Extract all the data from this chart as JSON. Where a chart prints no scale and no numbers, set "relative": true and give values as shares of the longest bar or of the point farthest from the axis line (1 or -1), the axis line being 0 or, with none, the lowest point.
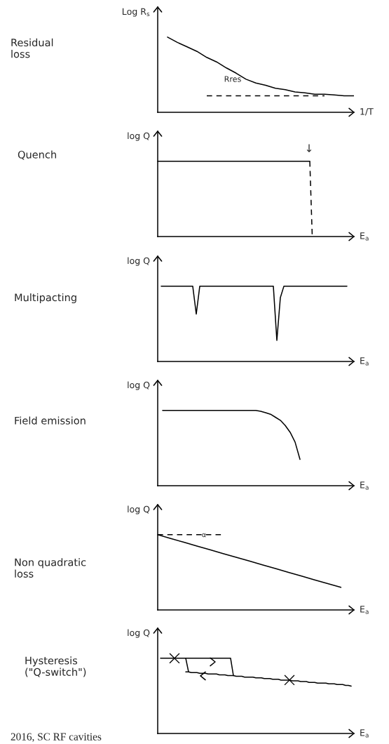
{
  "chart_data": [
    {
      "type": "line",
      "relative": true,
      "ylabel": "Log R$_{s}$",
      "xlabel": "1/T",
      "annotations": [
        "Residual\nloss",
        "Rres"
      ],
      "categories": [
        null,
        null,
        null,
        null,
        null,
        null,
        null,
        null,
        null,
        null,
        null,
        null,
        null,
        null,
        null,
        null,
        null,
        null,
        null,
        null,
        null
      ],
      "series": [
        {
          "type": "line",
          "color": "#000000",
          "line_style": "solid",
          "values": [
            null,
            1.0,
            0.93,
            0.87,
            0.81,
            0.73,
            0.67,
            0.59,
            0.52,
            0.44,
            0.39,
            0.36,
            0.32,
            0.3,
            0.27,
            0.26,
            0.24,
            0.24,
            0.23,
            0.22,
            0.22
          ]
        },
        {
          "type": "line",
          "color": "#000000",
          "line_style": "dashed",
          "values": [
            null,
            null,
            null,
            null,
            null,
            0.22,
            0.22,
            0.22,
            0.22,
            0.22,
            0.22,
            0.22,
            0.22,
            0.22,
            0.22,
            0.22,
            0.22,
            0.22,
            null,
            null,
            null
          ]
        }
      ]
    },
    {
      "type": "line",
      "relative": true,
      "ylabel": "log Q",
      "xlabel": "E$_{a}$",
      "annotations": [
        "Quench",
        "↓"
      ],
      "categories": [
        null,
        null,
        null,
        null,
        null,
        null,
        null,
        null,
        null,
        null,
        null,
        null,
        null,
        null,
        null,
        null,
        null,
        null,
        null,
        null,
        null,
        null,
        null,
        null,
        null,
        null,
        null,
        null,
        null,
        null,
        null,
        null,
        null,
        null,
        null,
        null,
        null,
        null,
        null,
        null,
        null,
        null,
        null,
        null,
        null,
        null,
        null,
        null,
        null,
        null,
        null,
        null,
        null,
        null,
        null,
        null,
        null,
        null,
        null,
        null,
        null,
        null,
        null,
        null,
        null,
        null,
        null,
        null,
        null,
        null,
        null,
        null,
        null,
        null,
        null,
        null,
        null,
        null,
        null,
        null,
        null
      ],
      "series": [
        {
          "type": "line",
          "color": "#000000",
          "line_style": "solid",
          "values": [
            1,
            1,
            1,
            1,
            1,
            1,
            1,
            1,
            1,
            1,
            1,
            1,
            1,
            1,
            1,
            1,
            1,
            1,
            1,
            1,
            1,
            1,
            1,
            1,
            1,
            1,
            1,
            1,
            1,
            1,
            1,
            1,
            1,
            1,
            1,
            1,
            1,
            1,
            1,
            1,
            1,
            1,
            1,
            1,
            1,
            1,
            1,
            1,
            1,
            1,
            1,
            1,
            1,
            1,
            1,
            1,
            1,
            1,
            1,
            1,
            1,
            1,
            1,
            null,
            null,
            null,
            null,
            null,
            null,
            null,
            null,
            null,
            null,
            null,
            null,
            null,
            null,
            null,
            null,
            null,
            null
          ]
        },
        {
          "type": "line",
          "color": "#000000",
          "line_style": "dashed",
          "values": [
            null,
            null,
            null,
            null,
            null,
            null,
            null,
            null,
            null,
            null,
            null,
            null,
            null,
            null,
            null,
            null,
            null,
            null,
            null,
            null,
            null,
            null,
            null,
            null,
            null,
            null,
            null,
            null,
            null,
            null,
            null,
            null,
            null,
            null,
            null,
            null,
            null,
            null,
            null,
            null,
            null,
            null,
            null,
            null,
            null,
            null,
            null,
            null,
            null,
            null,
            null,
            null,
            null,
            null,
            null,
            null,
            null,
            null,
            null,
            null,
            null,
            null,
            1,
            0,
            null,
            null,
            null,
            null,
            null,
            null,
            null,
            null,
            null,
            null,
            null,
            null,
            null,
            null,
            null,
            null,
            null
          ]
        }
      ]
    },
    {
      "type": "line",
      "relative": true,
      "ylabel": "log Q",
      "xlabel": "E$_{a}$",
      "annotations": [
        "Multipacting"
      ],
      "categories": [
        null,
        null,
        null,
        null,
        null,
        null,
        null,
        null,
        null,
        null,
        null,
        null,
        null,
        null,
        null,
        null,
        null,
        null,
        null,
        null,
        null,
        null,
        null,
        null,
        null,
        null,
        null,
        null,
        null,
        null,
        null,
        null,
        null,
        null,
        null,
        null,
        null,
        null,
        null,
        null,
        null,
        null,
        null,
        null,
        null,
        null,
        null,
        null,
        null,
        null,
        null,
        null,
        null,
        null,
        null,
        null,
        null
      ],
      "series": [
        {
          "type": "line",
          "color": "#000000",
          "line_style": "solid",
          "values": [
            null,
            1,
            1,
            1,
            1,
            1,
            1,
            1,
            1,
            1,
            1,
            0.63,
            1,
            1,
            1,
            1,
            1,
            1,
            1,
            1,
            1,
            1,
            1,
            1,
            1,
            1,
            1,
            1,
            1,
            1,
            1,
            1,
            1,
            1,
            0.28,
            0.85,
            1,
            1,
            1,
            1,
            1,
            1,
            1,
            1,
            1,
            1,
            1,
            1,
            1,
            1,
            1,
            1,
            1,
            1,
            1,
            null,
            null
          ]
        }
      ]
    },
    {
      "type": "line",
      "relative": true,
      "ylabel": "log Q",
      "xlabel": "E$_{a}$",
      "annotations": [
        "Field emission"
      ],
      "categories": [
        null,
        null,
        null,
        null,
        null,
        null,
        null,
        null,
        null,
        null,
        null,
        null,
        null,
        null,
        null,
        null,
        null,
        null,
        null,
        null,
        null,
        null,
        null,
        null,
        null,
        null,
        null,
        null,
        null,
        null,
        null,
        null,
        null,
        null,
        null,
        null,
        null,
        null,
        null,
        null,
        null
      ],
      "series": [
        {
          "type": "line",
          "color": "#000000",
          "line_style": "solid",
          "values": [
            null,
            1,
            1,
            1,
            1,
            1,
            1,
            1,
            1,
            1,
            1,
            1,
            1,
            1,
            1,
            1,
            1,
            1,
            1,
            1,
            1,
            0.99,
            0.97,
            0.95,
            0.91,
            0.87,
            0.8,
            0.71,
            0.58,
            0.35,
            null,
            null,
            null,
            null,
            null,
            null,
            null,
            null,
            null,
            null,
            null
          ]
        }
      ]
    },
    {
      "type": "line",
      "relative": true,
      "ylabel": "log Q",
      "xlabel": "E$_{a}$",
      "annotations": [
        "Non quadratic\nloss",
        "α"
      ],
      "categories": [
        null,
        null,
        null,
        null,
        null,
        null,
        null,
        null,
        null,
        null,
        null,
        null,
        null,
        null,
        null,
        null
      ],
      "series": [
        {
          "type": "line",
          "color": "#000000",
          "line_style": "solid",
          "values": [
            1.0,
            0.95,
            0.9,
            0.85,
            0.8,
            0.75,
            0.7,
            0.65,
            0.6,
            0.55,
            0.5,
            0.45,
            0.4,
            0.35,
            0.3,
            null
          ]
        },
        {
          "type": "line",
          "color": "#000000",
          "line_style": "dashed",
          "values": [
            1,
            1,
            1,
            1,
            1,
            1,
            null,
            null,
            null,
            null,
            null,
            null,
            null,
            null,
            null,
            null
          ]
        }
      ]
    },
    {
      "type": "line",
      "relative": true,
      "ylabel": "log Q",
      "xlabel": "E$_{a}$",
      "annotations": [
        "Hysteresis\n(\"Q-switch\")",
        "2016, SC RF cavities"
      ],
      "categories": [
        null,
        null,
        null,
        null,
        null,
        null,
        null,
        null,
        null,
        null,
        null,
        null,
        null,
        null,
        null,
        null,
        null,
        null,
        null,
        null,
        null,
        null,
        null,
        null,
        null,
        null,
        null,
        null,
        null,
        null,
        null,
        null,
        null,
        null,
        null,
        null,
        null,
        null,
        null,
        null,
        null,
        null,
        null,
        null,
        null,
        null,
        null,
        null,
        null,
        null,
        null,
        null,
        null,
        null,
        null,
        null,
        null,
        null,
        null,
        null,
        null,
        null,
        null,
        null,
        null,
        null,
        null,
        null,
        null,
        null,
        null
      ],
      "series": [
        {
          "type": "line",
          "color": "#000000",
          "line_style": "solid",
          "values": [
            null,
            1,
            1,
            1,
            1,
            1,
            1,
            1,
            1,
            1,
            1,
            1,
            1,
            1,
            1,
            1,
            1,
            1,
            1,
            1,
            1,
            1,
            1,
            1,
            1,
            1,
            1,
            0.77,
            null,
            null,
            null,
            null,
            null,
            null,
            null,
            null,
            null,
            null,
            null,
            null,
            null,
            null,
            null,
            null,
            null,
            null,
            null,
            null,
            null,
            null,
            null,
            null,
            null,
            null,
            null,
            null,
            null,
            null,
            null,
            null,
            null,
            null,
            null,
            null,
            null,
            null,
            null,
            null,
            null,
            null,
            null
          ]
        },
        {
          "type": "line",
          "color": "#000000",
          "line_style": "solid",
          "values": [
            null,
            null,
            null,
            null,
            null,
            null,
            null,
            null,
            null,
            null,
            1,
            0.82,
            null,
            null,
            null,
            null,
            null,
            null,
            null,
            null,
            null,
            null,
            null,
            null,
            null,
            null,
            null,
            null,
            null,
            null,
            null,
            null,
            null,
            null,
            null,
            null,
            null,
            null,
            null,
            null,
            null,
            null,
            null,
            null,
            null,
            null,
            null,
            null,
            null,
            null,
            null,
            null,
            null,
            null,
            null,
            null,
            null,
            null,
            null,
            null,
            null,
            null,
            null,
            null,
            null,
            null,
            null,
            null,
            null,
            null,
            null
          ]
        },
        {
          "type": "line",
          "color": "#000000",
          "line_style": "solid",
          "values": [
            null,
            null,
            null,
            null,
            null,
            null,
            null,
            null,
            null,
            null,
            0.82,
            0.82,
            0.81,
            0.81,
            0.81,
            0.8,
            0.8,
            0.8,
            0.79,
            0.79,
            0.79,
            0.79,
            0.78,
            0.78,
            0.78,
            0.77,
            0.77,
            0.77,
            0.76,
            0.76,
            0.76,
            0.75,
            0.75,
            0.75,
            0.75,
            0.74,
            0.74,
            0.74,
            0.73,
            0.73,
            0.73,
            0.72,
            0.72,
            0.72,
            0.71,
            0.71,
            0.71,
            0.71,
            0.7,
            0.7,
            0.7,
            0.69,
            0.69,
            0.69,
            0.68,
            0.68,
            0.68,
            0.67,
            0.67,
            0.67,
            0.67,
            0.66,
            0.66,
            0.66,
            0.65,
            0.65,
            0.65,
            0.64,
            0.64,
            0.63,
            null
          ]
        },
        {
          "type": "line",
          "color": "#000000",
          "marker": "cross",
          "values": [
            null,
            null,
            null,
            null,
            null,
            null,
            1,
            null,
            null,
            null,
            null,
            null,
            null,
            null,
            null,
            null,
            null,
            null,
            null,
            null,
            null,
            null,
            null,
            null,
            null,
            null,
            null,
            null,
            null,
            null,
            null,
            null,
            null,
            null,
            null,
            null,
            null,
            null,
            null,
            null,
            null,
            null,
            null,
            null,
            null,
            null,
            null,
            0.71,
            null,
            null,
            null,
            null,
            null,
            null,
            null,
            null,
            null,
            null,
            null,
            null,
            null,
            null,
            null,
            null,
            null,
            null,
            null,
            null,
            null,
            null,
            null
          ]
        }
      ]
    }
  ]
}
